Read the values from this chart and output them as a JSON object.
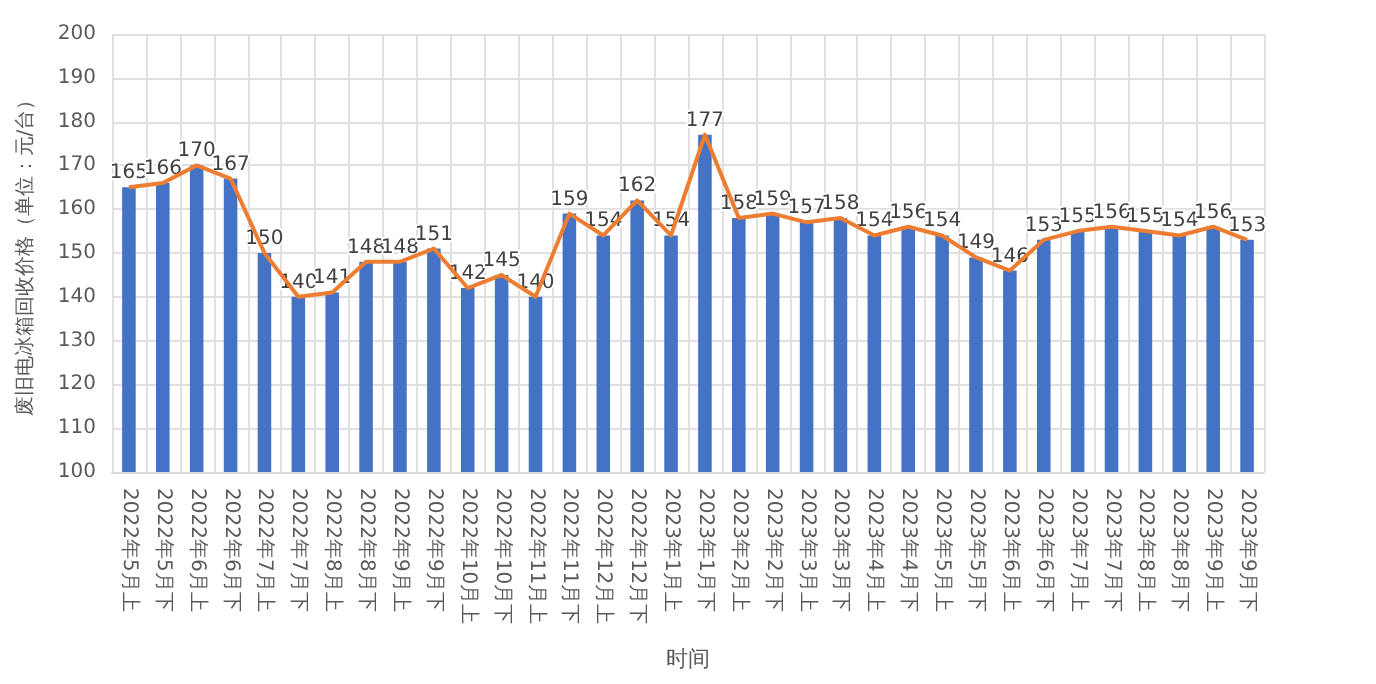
{
  "chart_data": {
    "type": "bar",
    "xlabel": "时间",
    "ylabel": "废旧电冰箱回收价格（单位：元/台）",
    "categories": [
      "2022年5月上",
      "2022年5月下",
      "2022年6月上",
      "2022年6月下",
      "2022年7月上",
      "2022年7月下",
      "2022年8月上",
      "2022年8月下",
      "2022年9月上",
      "2022年9月下",
      "2022年10月上",
      "2022年10月下",
      "2022年11月上",
      "2022年11月下",
      "2022年12月上",
      "2022年12月下",
      "2023年1月上",
      "2023年1月下",
      "2023年2月上",
      "2023年2月下",
      "2023年3月上",
      "2023年3月下",
      "2023年4月上",
      "2023年4月下",
      "2023年5月上",
      "2023年5月下",
      "2023年6月上",
      "2023年6月下",
      "2023年7月上",
      "2023年7月下",
      "2023年8月上",
      "2023年8月下",
      "2023年9月上",
      "2023年9月下"
    ],
    "series": [
      {
        "color": "#4472c4",
        "values": [
          165,
          166,
          170,
          167,
          150,
          140,
          141,
          148,
          148,
          151,
          142,
          145,
          140,
          159,
          154,
          162,
          154,
          177,
          158,
          159,
          157,
          158,
          154,
          156,
          154,
          149,
          146,
          153,
          155,
          156,
          155,
          154,
          156,
          153
        ],
        "value_labels": [
          "165",
          "166",
          "170",
          "167",
          "150",
          "140",
          "141",
          "148",
          "148",
          "151",
          "142",
          "145",
          "140",
          "159",
          "154",
          "162",
          "154",
          "177",
          "158",
          "159",
          "157",
          "158",
          "154",
          "156",
          "154",
          "149",
          "146",
          "153",
          "155",
          "156",
          "155",
          "154",
          "156",
          "153"
        ]
      },
      {
        "type": "line",
        "color": "#ed7d31",
        "values": [
          165,
          166,
          170,
          167,
          150,
          140,
          141,
          148,
          148,
          151,
          142,
          145,
          140,
          159,
          154,
          162,
          154,
          177,
          158,
          159,
          157,
          158,
          154,
          156,
          154,
          149,
          146,
          153,
          155,
          156,
          155,
          154,
          156,
          153
        ]
      }
    ],
    "ylim": [
      100,
      200
    ],
    "yticks": [
      100,
      110,
      120,
      130,
      140,
      150,
      160,
      170,
      180,
      190,
      200
    ],
    "grid": true,
    "marker": "none"
  }
}
